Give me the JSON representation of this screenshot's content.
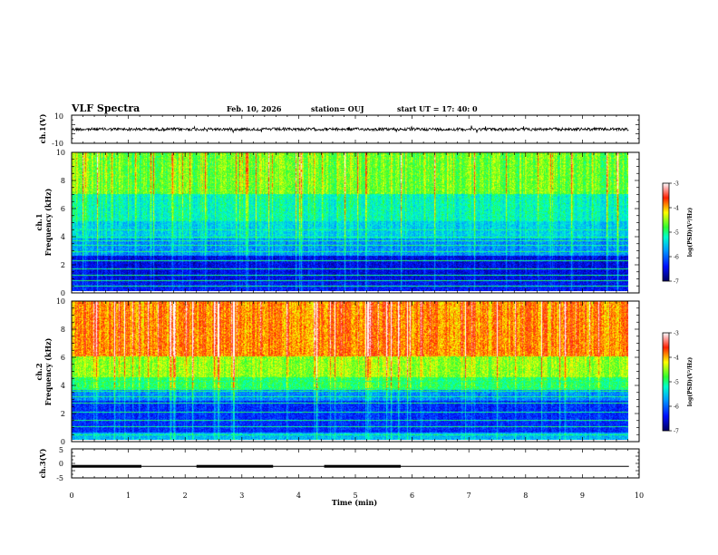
{
  "header": {
    "title": "VLF Spectra",
    "date": "Feb. 10, 2026",
    "station": "station= OUJ",
    "start": "start  UT =   17: 40: 0"
  },
  "chart_data": [
    {
      "type": "line",
      "panel": "ch1-waveform",
      "ylabel": "ch.1(V)",
      "ylim": [
        -10,
        10
      ],
      "yticks": [
        "10",
        "-10"
      ],
      "note_values": {
        "baseline": 0,
        "typical_amplitude": 1.5
      }
    },
    {
      "type": "heatmap",
      "panel": "ch1-spectrogram",
      "ylabel_top": "ch.1",
      "ylabel": "Frequency  (kHz)",
      "ylim": [
        0,
        10
      ],
      "yticks": [
        "0",
        "2",
        "4",
        "6",
        "8",
        "10"
      ],
      "colorbar": {
        "label": "log(PSD)(V²/Hz)",
        "range": [
          -7,
          -3
        ],
        "ticks": [
          "-3",
          "-4",
          "-5",
          "-6",
          "-7"
        ]
      },
      "bands": [
        {
          "from": 0,
          "to": 0.6,
          "level": 0.15
        },
        {
          "from": 0.6,
          "to": 2.5,
          "level": 0.12
        },
        {
          "from": 2.5,
          "to": 3.8,
          "level": 0.3
        },
        {
          "from": 3.8,
          "to": 5.0,
          "level": 0.38
        },
        {
          "from": 5.0,
          "to": 7.0,
          "level": 0.45
        },
        {
          "from": 7.0,
          "to": 10.0,
          "level": 0.58
        }
      ],
      "lines_khz": [
        0.3,
        0.7,
        1.1,
        1.6,
        2.2,
        2.8,
        3.3,
        3.6,
        3.9,
        4.4
      ]
    },
    {
      "type": "heatmap",
      "panel": "ch2-spectrogram",
      "ylabel_top": "ch.2",
      "ylabel": "Frequency  (kHz)",
      "ylim": [
        0,
        10
      ],
      "yticks": [
        "0",
        "2",
        "4",
        "6",
        "8",
        "10"
      ],
      "colorbar": {
        "label": "log(PSD)(V²/Hz)",
        "range": [
          -7,
          -3
        ],
        "ticks": [
          "-3",
          "-4",
          "-5",
          "-6",
          "-7"
        ]
      },
      "bands": [
        {
          "from": 0,
          "to": 0.5,
          "level": 0.35
        },
        {
          "from": 0.5,
          "to": 2.8,
          "level": 0.18
        },
        {
          "from": 2.8,
          "to": 3.6,
          "level": 0.3
        },
        {
          "from": 3.6,
          "to": 4.5,
          "level": 0.52
        },
        {
          "from": 4.5,
          "to": 6.0,
          "level": 0.62
        },
        {
          "from": 6.0,
          "to": 10.0,
          "level": 0.78
        }
      ],
      "lines_khz": [
        0.3,
        0.9,
        1.4,
        2.0,
        2.6,
        3.1,
        3.5,
        3.7,
        4.2
      ]
    },
    {
      "type": "line",
      "panel": "ch3-trigger",
      "ylabel": "ch.3(V)",
      "ylim": [
        -5,
        5
      ],
      "yticks": [
        "5",
        "0",
        "-5"
      ],
      "xlabel": "Time  (min)",
      "xlim": [
        0,
        10
      ],
      "xticks": [
        "0",
        "1",
        "2",
        "3",
        "4",
        "5",
        "6",
        "7",
        "8",
        "9",
        "10"
      ],
      "data_end_min": 9.82,
      "baseline_v": -1.0,
      "pulses": [
        {
          "start": 0.0,
          "end": 1.23
        },
        {
          "start": 2.2,
          "end": 3.55
        },
        {
          "start": 4.45,
          "end": 5.8
        }
      ]
    }
  ]
}
